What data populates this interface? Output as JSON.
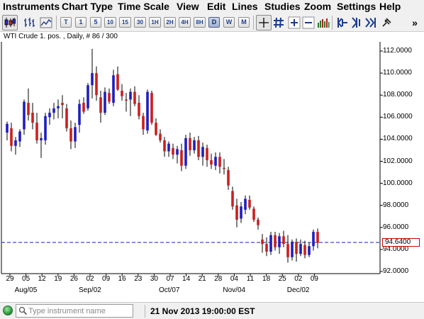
{
  "menu": {
    "instruments": "Instruments",
    "chart_type": "Chart Type",
    "time_scale": "Time Scale",
    "view": "View",
    "edit": "Edit",
    "lines": "Lines",
    "studies": "Studies",
    "zoom": "Zoom",
    "settings": "Settings",
    "help": "Help"
  },
  "toolbar": {
    "timeframes": [
      {
        "label": "T"
      },
      {
        "label": "1"
      },
      {
        "label": "5"
      },
      {
        "label": "10"
      },
      {
        "label": "15"
      },
      {
        "label": "30"
      },
      {
        "label": "1H"
      },
      {
        "label": "2H"
      },
      {
        "label": "4H"
      },
      {
        "label": "8H"
      },
      {
        "label": "D",
        "selected": true
      },
      {
        "label": "W"
      },
      {
        "label": "M"
      }
    ],
    "overflow": "»"
  },
  "chart": {
    "header": "WTI Crude 1. pos. , Daily, # 86 / 300",
    "last_price": "94.6400",
    "colors": {
      "up": "#1f1fbf",
      "down": "#cc1f1f",
      "last_price_line": "#1a1aaa"
    }
  },
  "chart_data": {
    "type": "candlestick",
    "title": "WTI Crude 1. pos. , Daily, # 86 / 300",
    "y_ticks": [
      "112.0000",
      "110.0000",
      "108.0000",
      "106.0000",
      "104.0000",
      "102.0000",
      "100.0000",
      "98.0000",
      "96.0000",
      "94.0000",
      "92.0000"
    ],
    "ylim": [
      92.0,
      112.0
    ],
    "x_ticks": [
      "29",
      "05",
      "12",
      "19",
      "26",
      "02",
      "09",
      "16",
      "23",
      "30",
      "07",
      "14",
      "21",
      "28",
      "04",
      "11",
      "18",
      "25",
      "02",
      "09"
    ],
    "x_months": [
      "Aug/05",
      "Sep/02",
      "Oct/07",
      "Nov/04",
      "Dec/02"
    ],
    "last_price": 94.64,
    "candles": [
      {
        "o": 104.6,
        "h": 105.6,
        "l": 103.9,
        "c": 105.4
      },
      {
        "o": 105.0,
        "h": 105.5,
        "l": 102.9,
        "c": 103.4
      },
      {
        "o": 103.4,
        "h": 104.2,
        "l": 102.6,
        "c": 103.9
      },
      {
        "o": 103.8,
        "h": 104.9,
        "l": 103.3,
        "c": 104.7
      },
      {
        "o": 104.9,
        "h": 107.6,
        "l": 104.4,
        "c": 107.4
      },
      {
        "o": 107.3,
        "h": 108.6,
        "l": 105.7,
        "c": 106.2
      },
      {
        "o": 106.4,
        "h": 107.3,
        "l": 104.9,
        "c": 105.5
      },
      {
        "o": 105.5,
        "h": 106.4,
        "l": 103.6,
        "c": 103.9
      },
      {
        "o": 103.9,
        "h": 104.6,
        "l": 102.3,
        "c": 104.1
      },
      {
        "o": 103.9,
        "h": 106.4,
        "l": 103.5,
        "c": 106.1
      },
      {
        "o": 106.0,
        "h": 106.8,
        "l": 105.3,
        "c": 106.4
      },
      {
        "o": 106.4,
        "h": 107.3,
        "l": 105.8,
        "c": 106.8
      },
      {
        "o": 106.8,
        "h": 107.6,
        "l": 105.9,
        "c": 107.0
      },
      {
        "o": 107.3,
        "h": 108.0,
        "l": 105.9,
        "c": 107.1
      },
      {
        "o": 106.8,
        "h": 107.2,
        "l": 104.7,
        "c": 105.0
      },
      {
        "o": 105.0,
        "h": 105.7,
        "l": 103.1,
        "c": 103.8
      },
      {
        "o": 103.8,
        "h": 105.5,
        "l": 103.2,
        "c": 105.1
      },
      {
        "o": 105.3,
        "h": 107.6,
        "l": 104.6,
        "c": 107.2
      },
      {
        "o": 107.3,
        "h": 107.8,
        "l": 106.3,
        "c": 106.5
      },
      {
        "o": 106.8,
        "h": 109.1,
        "l": 106.6,
        "c": 108.9
      },
      {
        "o": 108.9,
        "h": 112.2,
        "l": 107.7,
        "c": 110.0
      },
      {
        "o": 110.0,
        "h": 110.6,
        "l": 107.5,
        "c": 108.0
      },
      {
        "o": 107.8,
        "h": 108.4,
        "l": 105.5,
        "c": 106.4
      },
      {
        "o": 106.4,
        "h": 108.7,
        "l": 106.2,
        "c": 108.3
      },
      {
        "o": 108.2,
        "h": 108.6,
        "l": 107.2,
        "c": 107.4
      },
      {
        "o": 107.3,
        "h": 110.3,
        "l": 107.0,
        "c": 109.8
      },
      {
        "o": 109.9,
        "h": 110.6,
        "l": 108.4,
        "c": 108.5
      },
      {
        "o": 108.4,
        "h": 109.0,
        "l": 107.5,
        "c": 107.9
      },
      {
        "o": 107.6,
        "h": 108.2,
        "l": 106.5,
        "c": 107.5
      },
      {
        "o": 107.6,
        "h": 108.6,
        "l": 106.1,
        "c": 108.3
      },
      {
        "o": 108.3,
        "h": 108.8,
        "l": 107.0,
        "c": 107.2
      },
      {
        "o": 107.3,
        "h": 108.0,
        "l": 105.8,
        "c": 106.1
      },
      {
        "o": 106.1,
        "h": 106.4,
        "l": 104.4,
        "c": 104.9
      },
      {
        "o": 104.8,
        "h": 108.5,
        "l": 104.5,
        "c": 108.3
      },
      {
        "o": 108.2,
        "h": 108.4,
        "l": 105.3,
        "c": 105.5
      },
      {
        "o": 105.5,
        "h": 105.9,
        "l": 104.3,
        "c": 104.4
      },
      {
        "o": 104.5,
        "h": 104.9,
        "l": 103.7,
        "c": 103.9
      },
      {
        "o": 103.9,
        "h": 104.2,
        "l": 102.4,
        "c": 102.9
      },
      {
        "o": 102.9,
        "h": 103.8,
        "l": 102.4,
        "c": 103.6
      },
      {
        "o": 103.2,
        "h": 103.6,
        "l": 102.2,
        "c": 102.6
      },
      {
        "o": 102.6,
        "h": 103.4,
        "l": 101.8,
        "c": 103.1
      },
      {
        "o": 103.0,
        "h": 103.6,
        "l": 101.1,
        "c": 101.6
      },
      {
        "o": 101.6,
        "h": 104.4,
        "l": 101.3,
        "c": 104.1
      },
      {
        "o": 104.1,
        "h": 104.6,
        "l": 102.5,
        "c": 103.0
      },
      {
        "o": 103.0,
        "h": 104.2,
        "l": 102.7,
        "c": 103.9
      },
      {
        "o": 103.9,
        "h": 104.3,
        "l": 102.1,
        "c": 102.4
      },
      {
        "o": 102.4,
        "h": 103.7,
        "l": 101.6,
        "c": 103.3
      },
      {
        "o": 103.2,
        "h": 103.5,
        "l": 101.5,
        "c": 102.1
      },
      {
        "o": 102.1,
        "h": 102.7,
        "l": 101.3,
        "c": 101.7
      },
      {
        "o": 101.6,
        "h": 102.8,
        "l": 101.2,
        "c": 102.4
      },
      {
        "o": 102.4,
        "h": 102.8,
        "l": 100.9,
        "c": 101.5
      },
      {
        "o": 101.4,
        "h": 102.2,
        "l": 100.8,
        "c": 101.3
      },
      {
        "o": 101.2,
        "h": 101.5,
        "l": 99.4,
        "c": 99.8
      },
      {
        "o": 99.3,
        "h": 99.7,
        "l": 97.6,
        "c": 97.9
      },
      {
        "o": 98.0,
        "h": 98.6,
        "l": 96.0,
        "c": 96.7
      },
      {
        "o": 96.8,
        "h": 98.3,
        "l": 96.4,
        "c": 97.9
      },
      {
        "o": 97.6,
        "h": 98.9,
        "l": 97.2,
        "c": 98.6
      },
      {
        "o": 98.5,
        "h": 98.9,
        "l": 97.6,
        "c": 97.8
      },
      {
        "o": 97.7,
        "h": 97.9,
        "l": 96.5,
        "c": 96.7
      },
      {
        "o": 96.7,
        "h": 96.9,
        "l": 95.8,
        "c": 96.2
      },
      {
        "o": 94.9,
        "h": 95.4,
        "l": 93.7,
        "c": 94.5
      },
      {
        "o": 94.5,
        "h": 95.1,
        "l": 93.4,
        "c": 93.8
      },
      {
        "o": 93.8,
        "h": 95.6,
        "l": 93.5,
        "c": 95.3
      },
      {
        "o": 95.3,
        "h": 95.6,
        "l": 93.9,
        "c": 94.2
      },
      {
        "o": 94.2,
        "h": 95.5,
        "l": 93.6,
        "c": 95.2
      },
      {
        "o": 95.2,
        "h": 95.7,
        "l": 94.2,
        "c": 94.5
      },
      {
        "o": 94.5,
        "h": 95.3,
        "l": 92.8,
        "c": 93.3
      },
      {
        "o": 93.3,
        "h": 94.9,
        "l": 93.0,
        "c": 94.7
      },
      {
        "o": 94.7,
        "h": 95.0,
        "l": 92.9,
        "c": 93.6
      },
      {
        "o": 93.6,
        "h": 94.9,
        "l": 93.4,
        "c": 94.5
      },
      {
        "o": 94.4,
        "h": 94.8,
        "l": 93.2,
        "c": 93.5
      },
      {
        "o": 93.5,
        "h": 94.6,
        "l": 93.3,
        "c": 94.3
      },
      {
        "o": 94.3,
        "h": 95.8,
        "l": 93.9,
        "c": 95.6
      },
      {
        "o": 95.6,
        "h": 95.9,
        "l": 94.1,
        "c": 94.6
      }
    ]
  },
  "statusbar": {
    "search_placeholder": "Type instrument name",
    "datetime": "21 Nov 2013 19:00:00 EST"
  }
}
